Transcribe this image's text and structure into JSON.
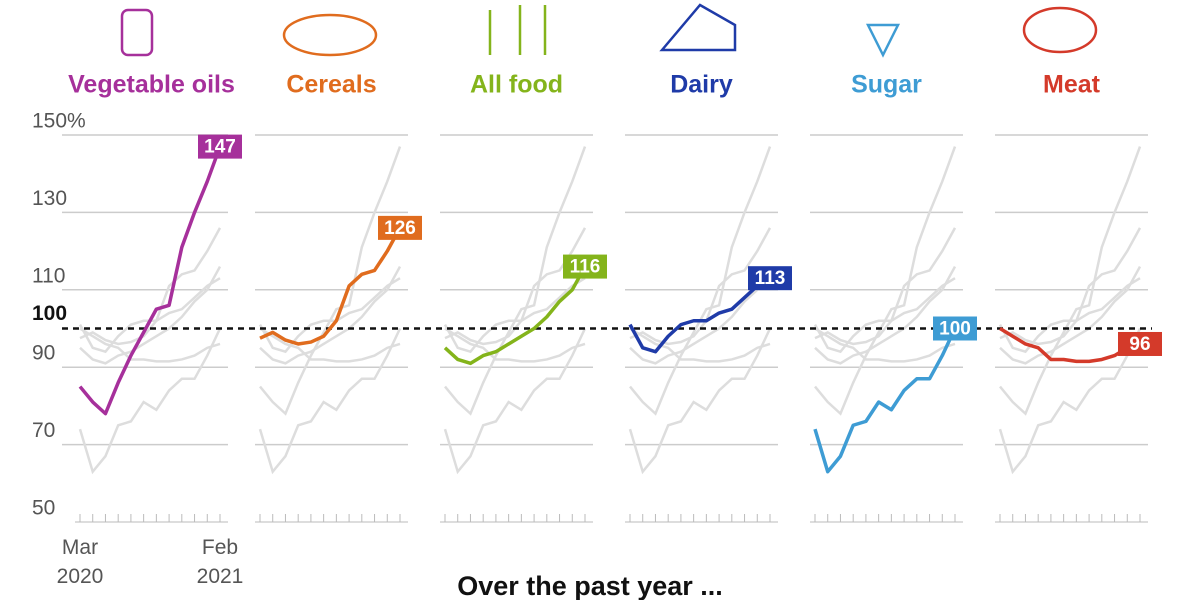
{
  "chart_data": {
    "type": "line",
    "x": [
      "Mar 2020",
      null,
      null,
      null,
      null,
      null,
      null,
      null,
      null,
      null,
      null,
      "Feb 2021"
    ],
    "ylim": [
      50,
      150
    ],
    "yticks": [
      50,
      70,
      90,
      110,
      130,
      {
        "value": 150,
        "label": "150%"
      }
    ],
    "reference_line": 100,
    "footer": "Over the past year ...",
    "series": [
      {
        "name": "Vegetable oils",
        "color": "#a6309b",
        "values": [
          85,
          81,
          78,
          86,
          93,
          99,
          105,
          106,
          121,
          130,
          138,
          147
        ]
      },
      {
        "name": "Cereals",
        "color": "#e06c1e",
        "values": [
          97.5,
          99,
          97,
          96,
          96.5,
          98,
          102,
          111,
          114,
          115,
          120,
          126
        ]
      },
      {
        "name": "All food",
        "color": "#84b41b",
        "values": [
          95,
          92,
          91,
          93,
          94,
          96,
          98,
          100,
          103,
          107,
          110,
          116
        ]
      },
      {
        "name": "Dairy",
        "color": "#1f3ba8",
        "values": [
          101,
          95,
          94,
          98,
          101,
          102,
          102,
          104,
          105,
          108,
          111,
          113
        ]
      },
      {
        "name": "Sugar",
        "color": "#3e9cd4",
        "values": [
          74,
          63,
          67,
          75,
          76,
          81,
          79,
          84,
          87,
          87,
          93,
          100
        ]
      },
      {
        "name": "Meat",
        "color": "#d43a2a",
        "values": [
          100,
          98,
          96,
          95,
          92,
          92,
          91.5,
          91.5,
          92,
          93,
          95,
          96
        ]
      }
    ]
  }
}
